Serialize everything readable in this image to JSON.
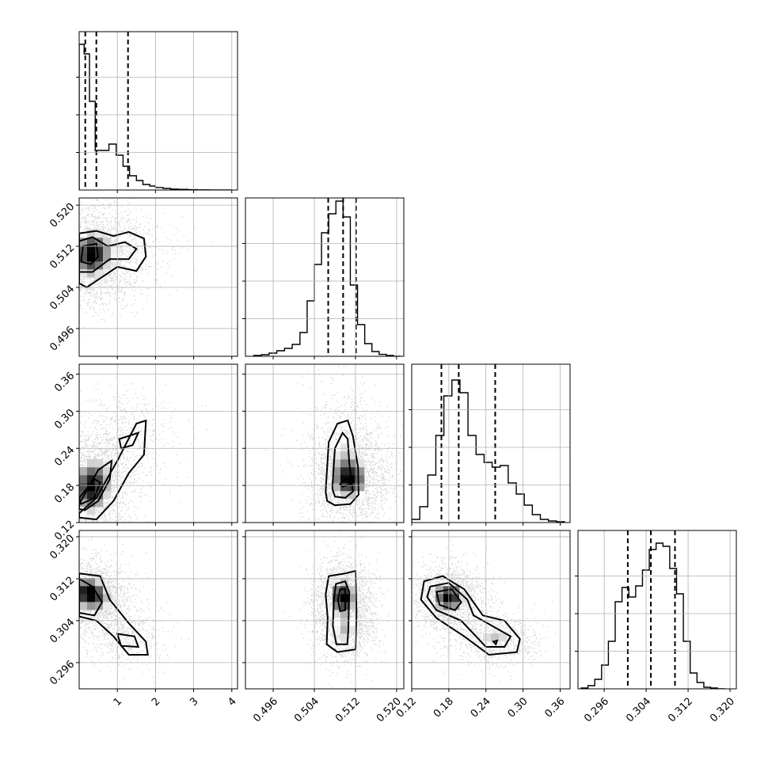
{
  "chart_data": {
    "type": "corner",
    "colors": {
      "points": "#000000",
      "contour_line": "#000000",
      "grid": "#b0b0b0"
    },
    "parameters": [
      {
        "xlim": [
          0.0,
          4.15
        ],
        "ticks": [
          1,
          2,
          3,
          4
        ],
        "tick_labels": [
          "1",
          "2",
          "3",
          "4"
        ]
      },
      {
        "xlim": [
          0.4906,
          0.5214
        ],
        "ticks": [
          0.496,
          0.504,
          0.512,
          0.52
        ],
        "tick_labels": [
          "0.496",
          "0.504",
          "0.512",
          "0.520"
        ]
      },
      {
        "xlim": [
          0.12,
          0.376
        ],
        "ticks": [
          0.12,
          0.18,
          0.24,
          0.3,
          0.36
        ],
        "tick_labels": [
          "0.12",
          "0.18",
          "0.24",
          "0.30",
          "0.36"
        ]
      },
      {
        "xlim": [
          0.291,
          0.3212
        ],
        "ticks": [
          0.296,
          0.304,
          0.312,
          0.32
        ],
        "tick_labels": [
          "0.296",
          "0.304",
          "0.312",
          "0.320"
        ]
      }
    ],
    "diagonal": [
      {
        "bins": [
          0.0,
          0.13,
          0.27,
          0.42,
          0.6,
          0.78,
          0.97,
          1.15,
          1.32,
          1.5,
          1.67,
          1.85,
          2.0,
          2.2,
          2.4,
          2.6,
          2.85,
          3.1,
          3.4,
          3.7,
          4.0
        ],
        "counts": [
          0.92,
          0.86,
          0.56,
          0.25,
          0.25,
          0.29,
          0.22,
          0.15,
          0.09,
          0.06,
          0.035,
          0.025,
          0.016,
          0.01,
          0.006,
          0.004,
          0.002,
          0.001,
          0.0005,
          0
        ],
        "quantiles": [
          0.16,
          0.45,
          1.28
        ]
      },
      {
        "bins": [
          0.4922,
          0.4937,
          0.4952,
          0.4967,
          0.4982,
          0.4997,
          0.5012,
          0.5026,
          0.504,
          0.5054,
          0.5068,
          0.5082,
          0.5096,
          0.511,
          0.5124,
          0.5138,
          0.5152,
          0.5166,
          0.518,
          0.5194,
          0.5208
        ],
        "counts": [
          0.005,
          0.01,
          0.02,
          0.035,
          0.05,
          0.075,
          0.15,
          0.35,
          0.58,
          0.78,
          0.9,
          0.98,
          0.88,
          0.45,
          0.2,
          0.08,
          0.03,
          0.012,
          0.005,
          0
        ],
        "quantiles": [
          0.5067,
          0.5096,
          0.5121
        ]
      },
      {
        "bins": [
          0.12,
          0.133,
          0.146,
          0.159,
          0.172,
          0.185,
          0.198,
          0.211,
          0.224,
          0.237,
          0.25,
          0.263,
          0.276,
          0.289,
          0.302,
          0.315,
          0.328,
          0.341,
          0.354,
          0.367
        ],
        "counts": [
          0.02,
          0.1,
          0.3,
          0.55,
          0.8,
          0.9,
          0.82,
          0.55,
          0.43,
          0.38,
          0.35,
          0.36,
          0.25,
          0.18,
          0.11,
          0.05,
          0.02,
          0.01,
          0.005
        ],
        "quantiles": [
          0.168,
          0.196,
          0.255
        ]
      },
      {
        "bins": [
          0.2916,
          0.2929,
          0.2942,
          0.2955,
          0.2968,
          0.2981,
          0.2994,
          0.3007,
          0.302,
          0.3033,
          0.3046,
          0.3059,
          0.3072,
          0.3085,
          0.3098,
          0.3111,
          0.3124,
          0.3137,
          0.315,
          0.3163,
          0.3176,
          0.319
        ],
        "counts": [
          0.005,
          0.02,
          0.06,
          0.15,
          0.3,
          0.55,
          0.64,
          0.58,
          0.65,
          0.75,
          0.88,
          0.92,
          0.9,
          0.76,
          0.6,
          0.3,
          0.1,
          0.04,
          0.01,
          0.005,
          0
        ],
        "quantiles": [
          0.3005,
          0.3049,
          0.3095
        ]
      }
    ],
    "pairs": [
      {
        "x_param": 0,
        "y_param": 1,
        "modes": [
          [
            0.25,
            0.5104,
            0.3,
            0.0032,
            0.6
          ],
          [
            0.55,
            0.5108,
            0.3,
            0.003,
            0.25
          ],
          [
            1.25,
            0.511,
            0.4,
            0.003,
            0.2
          ]
        ],
        "contours": [
          [
            [
              0.0,
              0.5145
            ],
            [
              0.45,
              0.515
            ],
            [
              0.9,
              0.514
            ],
            [
              1.3,
              0.5148
            ],
            [
              1.7,
              0.5135
            ],
            [
              1.75,
              0.51
            ],
            [
              1.5,
              0.5072
            ],
            [
              1.0,
              0.508
            ],
            [
              0.6,
              0.506
            ],
            [
              0.2,
              0.504
            ],
            [
              0.0,
              0.5048
            ]
          ],
          [
            [
              0.0,
              0.513
            ],
            [
              0.35,
              0.5138
            ],
            [
              0.75,
              0.512
            ],
            [
              1.2,
              0.5128
            ],
            [
              1.5,
              0.5115
            ],
            [
              1.3,
              0.5095
            ],
            [
              0.8,
              0.5095
            ],
            [
              0.35,
              0.507
            ],
            [
              0.0,
              0.507
            ]
          ],
          [
            [
              0.1,
              0.512
            ],
            [
              0.45,
              0.5125
            ],
            [
              0.5,
              0.51
            ],
            [
              0.3,
              0.5085
            ],
            [
              0.05,
              0.509
            ]
          ]
        ]
      },
      {
        "x_param": 0,
        "y_param": 2,
        "modes": [
          [
            0.25,
            0.175,
            0.3,
            0.03,
            0.6
          ],
          [
            0.6,
            0.19,
            0.3,
            0.03,
            0.25
          ],
          [
            1.3,
            0.255,
            0.4,
            0.03,
            0.2
          ]
        ],
        "contours": [
          [
            [
              0.0,
              0.135
            ],
            [
              0.45,
              0.16
            ],
            [
              1.0,
              0.22
            ],
            [
              1.5,
              0.28
            ],
            [
              1.75,
              0.285
            ],
            [
              1.7,
              0.23
            ],
            [
              1.3,
              0.2
            ],
            [
              0.9,
              0.155
            ],
            [
              0.45,
              0.125
            ],
            [
              0.0,
              0.128
            ]
          ],
          [
            [
              0.0,
              0.15
            ],
            [
              0.5,
              0.205
            ],
            [
              0.85,
              0.22
            ],
            [
              0.8,
              0.19
            ],
            [
              0.5,
              0.155
            ],
            [
              0.15,
              0.14
            ],
            [
              0.0,
              0.142
            ]
          ],
          [
            [
              0.0,
              0.16
            ],
            [
              0.4,
              0.19
            ],
            [
              0.55,
              0.185
            ],
            [
              0.4,
              0.16
            ],
            [
              0.05,
              0.15
            ]
          ],
          [
            [
              1.05,
              0.255
            ],
            [
              1.55,
              0.265
            ],
            [
              1.4,
              0.245
            ],
            [
              1.1,
              0.24
            ]
          ]
        ]
      },
      {
        "x_param": 1,
        "y_param": 2,
        "modes": [
          [
            0.5108,
            0.19,
            0.0025,
            0.022,
            0.8
          ],
          [
            0.5095,
            0.245,
            0.0025,
            0.03,
            0.3
          ]
        ],
        "contours": [
          [
            [
              0.5062,
              0.17
            ],
            [
              0.5068,
              0.25
            ],
            [
              0.5085,
              0.28
            ],
            [
              0.5105,
              0.285
            ],
            [
              0.5115,
              0.26
            ],
            [
              0.5125,
              0.21
            ],
            [
              0.5126,
              0.165
            ],
            [
              0.511,
              0.15
            ],
            [
              0.508,
              0.148
            ],
            [
              0.5065,
              0.155
            ]
          ],
          [
            [
              0.5075,
              0.175
            ],
            [
              0.508,
              0.24
            ],
            [
              0.5095,
              0.265
            ],
            [
              0.5105,
              0.255
            ],
            [
              0.5108,
              0.215
            ],
            [
              0.5115,
              0.17
            ],
            [
              0.51,
              0.16
            ],
            [
              0.508,
              0.162
            ]
          ],
          [
            [
              0.509,
              0.182
            ],
            [
              0.51,
              0.19
            ],
            [
              0.5115,
              0.19
            ],
            [
              0.511,
              0.182
            ],
            [
              0.5095,
              0.178
            ]
          ],
          [
            [
              0.5103,
              0.185
            ],
            [
              0.511,
              0.19
            ],
            [
              0.5117,
              0.187
            ],
            [
              0.511,
              0.184
            ]
          ]
        ]
      },
      {
        "x_param": 0,
        "y_param": 3,
        "modes": [
          [
            0.2,
            0.3095,
            0.3,
            0.0022,
            0.7
          ],
          [
            0.6,
            0.308,
            0.3,
            0.002,
            0.3
          ],
          [
            1.2,
            0.301,
            0.35,
            0.0018,
            0.25
          ]
        ],
        "contours": [
          [
            [
              0.0,
              0.313
            ],
            [
              0.55,
              0.3125
            ],
            [
              0.8,
              0.308
            ],
            [
              1.3,
              0.3035
            ],
            [
              1.75,
              0.3
            ],
            [
              1.8,
              0.2975
            ],
            [
              1.3,
              0.2975
            ],
            [
              0.9,
              0.301
            ],
            [
              0.45,
              0.304
            ],
            [
              0.0,
              0.3048
            ]
          ],
          [
            [
              0.0,
              0.312
            ],
            [
              0.35,
              0.3105
            ],
            [
              0.6,
              0.3075
            ],
            [
              0.4,
              0.305
            ],
            [
              0.0,
              0.3055
            ]
          ],
          [
            [
              1.0,
              0.3015
            ],
            [
              1.45,
              0.301
            ],
            [
              1.55,
              0.299
            ],
            [
              1.1,
              0.2992
            ]
          ]
        ]
      },
      {
        "x_param": 1,
        "y_param": 3,
        "modes": [
          [
            0.5095,
            0.3085,
            0.0018,
            0.0024,
            0.8
          ],
          [
            0.51,
            0.302,
            0.002,
            0.002,
            0.4
          ]
        ],
        "contours": [
          [
            [
              0.5062,
              0.309
            ],
            [
              0.5068,
              0.3125
            ],
            [
              0.51,
              0.313
            ],
            [
              0.512,
              0.3135
            ],
            [
              0.5122,
              0.3055
            ],
            [
              0.512,
              0.2985
            ],
            [
              0.5085,
              0.298
            ],
            [
              0.5064,
              0.2995
            ],
            [
              0.5066,
              0.3045
            ]
          ],
          [
            [
              0.5078,
              0.308
            ],
            [
              0.5082,
              0.311
            ],
            [
              0.51,
              0.3115
            ],
            [
              0.5108,
              0.3095
            ],
            [
              0.5106,
              0.302
            ],
            [
              0.5104,
              0.2995
            ],
            [
              0.5083,
              0.2995
            ],
            [
              0.5076,
              0.303
            ]
          ],
          [
            [
              0.5086,
              0.308
            ],
            [
              0.509,
              0.31
            ],
            [
              0.51,
              0.31
            ],
            [
              0.51,
              0.306
            ],
            [
              0.509,
              0.3058
            ]
          ]
        ]
      },
      {
        "x_param": 2,
        "y_param": 3,
        "modes": [
          [
            0.18,
            0.3085,
            0.018,
            0.002,
            0.8
          ],
          [
            0.255,
            0.3005,
            0.025,
            0.0016,
            0.4
          ]
        ],
        "contours": [
          [
            [
              0.14,
              0.3115
            ],
            [
              0.17,
              0.3125
            ],
            [
              0.205,
              0.31
            ],
            [
              0.235,
              0.305
            ],
            [
              0.27,
              0.304
            ],
            [
              0.295,
              0.3005
            ],
            [
              0.29,
              0.298
            ],
            [
              0.245,
              0.2975
            ],
            [
              0.205,
              0.301
            ],
            [
              0.16,
              0.3045
            ],
            [
              0.135,
              0.308
            ]
          ],
          [
            [
              0.15,
              0.3105
            ],
            [
              0.18,
              0.3112
            ],
            [
              0.21,
              0.308
            ],
            [
              0.22,
              0.305
            ],
            [
              0.25,
              0.303
            ],
            [
              0.28,
              0.301
            ],
            [
              0.27,
              0.299
            ],
            [
              0.24,
              0.299
            ],
            [
              0.2,
              0.304
            ],
            [
              0.16,
              0.306
            ],
            [
              0.145,
              0.3085
            ]
          ],
          [
            [
              0.16,
              0.3095
            ],
            [
              0.185,
              0.31
            ],
            [
              0.2,
              0.3075
            ],
            [
              0.19,
              0.306
            ],
            [
              0.165,
              0.307
            ]
          ],
          [
            [
              0.252,
              0.3
            ],
            [
              0.258,
              0.3002
            ],
            [
              0.256,
              0.2995
            ]
          ]
        ]
      }
    ]
  }
}
